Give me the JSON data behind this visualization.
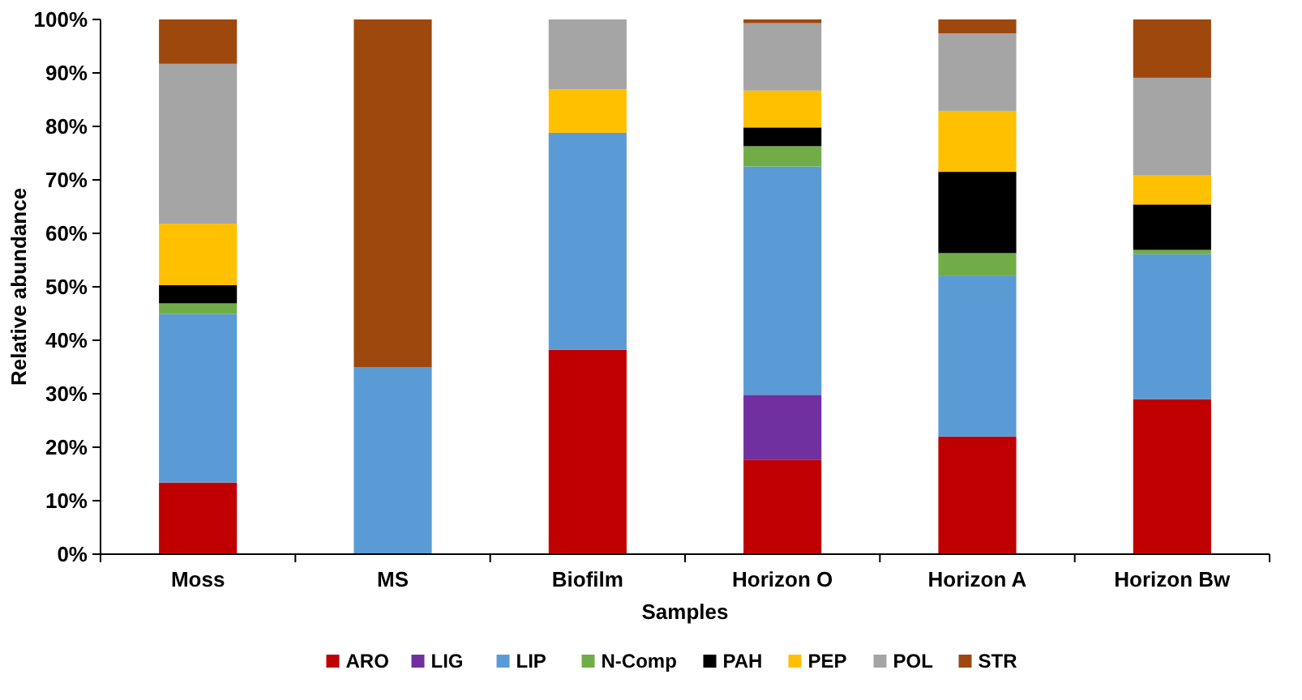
{
  "chart_data": {
    "type": "bar",
    "stacked": true,
    "xlabel": "Samples",
    "ylabel": "Relative abundance",
    "categories": [
      "Moss",
      "MS",
      "Biofilm",
      "Horizon O",
      "Horizon A",
      "Horizon Bw"
    ],
    "ylim": [
      0,
      100
    ],
    "yticks": [
      {
        "value": 0,
        "label": "0%"
      },
      {
        "value": 10,
        "label": "10%"
      },
      {
        "value": 20,
        "label": "20%"
      },
      {
        "value": 30,
        "label": "30%"
      },
      {
        "value": 40,
        "label": "40%"
      },
      {
        "value": 50,
        "label": "50%"
      },
      {
        "value": 60,
        "label": "60%"
      },
      {
        "value": 70,
        "label": "70%"
      },
      {
        "value": 80,
        "label": "80%"
      },
      {
        "value": 90,
        "label": "90%"
      },
      {
        "value": 100,
        "label": "100%"
      }
    ],
    "grid": false,
    "legend": "bottom",
    "series": [
      {
        "name": "ARO",
        "color": "#c00000",
        "values": [
          13.4,
          0,
          38.2,
          17.6,
          22.0,
          29.0
        ]
      },
      {
        "name": "LIG",
        "color": "#7030a0",
        "values": [
          0,
          0,
          0,
          12.2,
          0,
          0
        ]
      },
      {
        "name": "LIP",
        "color": "#5b9bd5",
        "values": [
          31.5,
          35,
          40.6,
          42.7,
          30.1,
          27.1
        ]
      },
      {
        "name": "N-Comp",
        "color": "#70ad47",
        "values": [
          2,
          0,
          0,
          3.8,
          4.2,
          0.8
        ]
      },
      {
        "name": "PAH",
        "color": "#000000",
        "values": [
          3.4,
          0,
          0,
          3.5,
          15.2,
          8.5
        ]
      },
      {
        "name": "PEP",
        "color": "#ffc000",
        "values": [
          11.5,
          0,
          8.1,
          6.9,
          11.4,
          5.4
        ]
      },
      {
        "name": "POL",
        "color": "#a5a5a5",
        "values": [
          29.9,
          0,
          13.1,
          12.6,
          14.5,
          18.3
        ]
      },
      {
        "name": "STR",
        "color": "#9e480e",
        "values": [
          8.3,
          65,
          0,
          0.7,
          2.6,
          10.9
        ]
      }
    ]
  }
}
